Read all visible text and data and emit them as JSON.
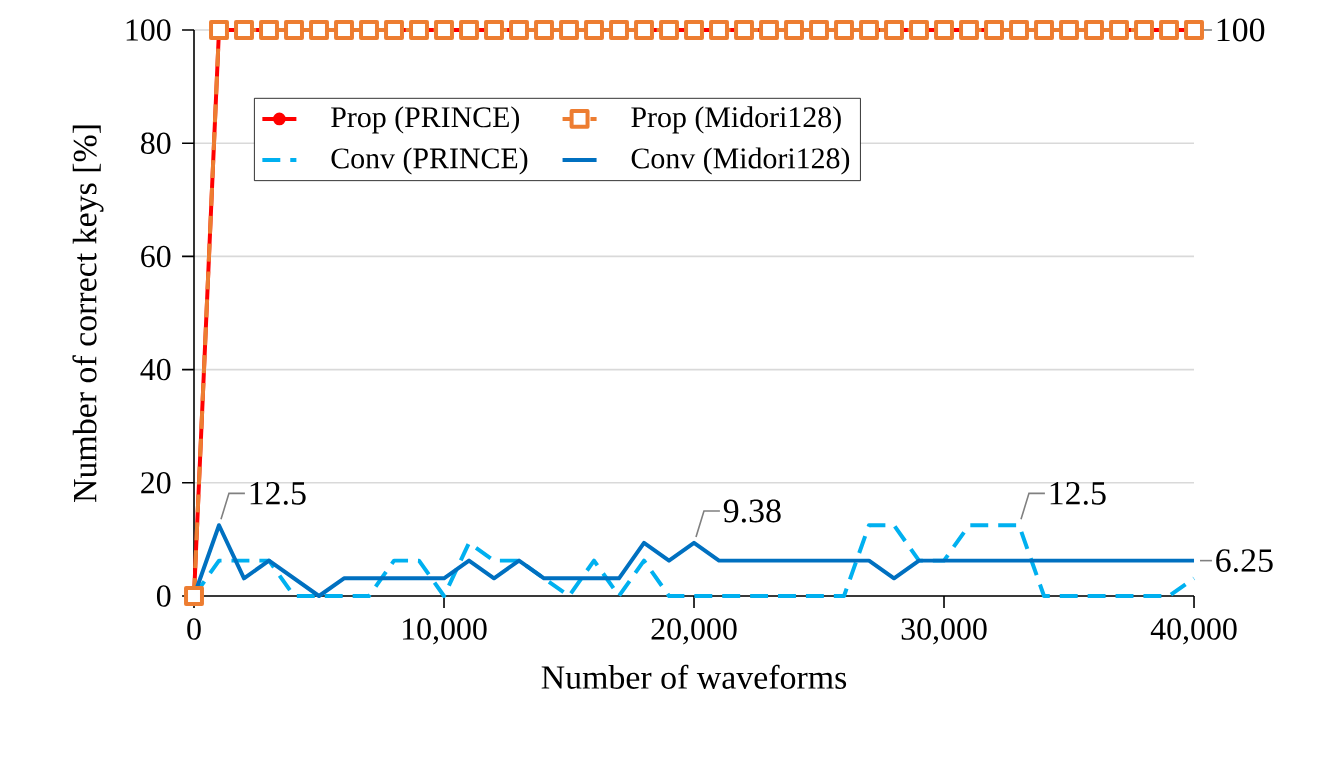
{
  "chart_data": {
    "type": "line",
    "xlabel": "Number of waveforms",
    "ylabel": "Number of correct keys [%]",
    "x": [
      0,
      1000,
      2000,
      3000,
      4000,
      5000,
      6000,
      7000,
      8000,
      9000,
      10000,
      11000,
      12000,
      13000,
      14000,
      15000,
      16000,
      17000,
      18000,
      19000,
      20000,
      21000,
      22000,
      23000,
      24000,
      25000,
      26000,
      27000,
      28000,
      29000,
      30000,
      31000,
      32000,
      33000,
      34000,
      35000,
      36000,
      37000,
      38000,
      39000,
      40000
    ],
    "xlim": [
      0,
      40000
    ],
    "ylim": [
      0,
      100
    ],
    "xticks": [
      0,
      {
        "value": 10000,
        "label": "10,000"
      },
      {
        "value": 20000,
        "label": "20,000"
      },
      {
        "value": 30000,
        "label": "30,000"
      },
      {
        "value": 40000,
        "label": "40,000"
      }
    ],
    "yticks": [
      0,
      20,
      40,
      60,
      80,
      100
    ],
    "grid": "y",
    "legend": "top",
    "series": [
      {
        "name": "Prop (PRINCE)",
        "color": "#ff0000",
        "line_style": "solid",
        "marker": "circle",
        "values": [
          0,
          100,
          100,
          100,
          100,
          100,
          100,
          100,
          100,
          100,
          100,
          100,
          100,
          100,
          100,
          100,
          100,
          100,
          100,
          100,
          100,
          100,
          100,
          100,
          100,
          100,
          100,
          100,
          100,
          100,
          100,
          100,
          100,
          100,
          100,
          100,
          100,
          100,
          100,
          100,
          100
        ]
      },
      {
        "name": "Prop (Midori128)",
        "color": "#ed7d31",
        "line_style": "dashed",
        "marker": "square",
        "values": [
          0,
          100,
          100,
          100,
          100,
          100,
          100,
          100,
          100,
          100,
          100,
          100,
          100,
          100,
          100,
          100,
          100,
          100,
          100,
          100,
          100,
          100,
          100,
          100,
          100,
          100,
          100,
          100,
          100,
          100,
          100,
          100,
          100,
          100,
          100,
          100,
          100,
          100,
          100,
          100,
          100
        ]
      },
      {
        "name": "Conv (PRINCE)",
        "color": "#00b0f0",
        "line_style": "dashed",
        "marker": "none",
        "values": [
          0,
          6.25,
          6.25,
          6.25,
          0,
          0,
          0,
          0,
          6.25,
          6.25,
          0,
          9.375,
          6.25,
          6.25,
          3.125,
          0,
          6.25,
          0,
          6.25,
          0,
          0,
          0,
          0,
          0,
          0,
          0,
          0,
          12.5,
          12.5,
          6.25,
          6.25,
          12.5,
          12.5,
          12.5,
          0,
          0,
          0,
          0,
          0,
          0,
          3.125
        ]
      },
      {
        "name": "Conv (Midori128)",
        "color": "#0070c0",
        "line_style": "solid",
        "marker": "none",
        "values": [
          0,
          12.5,
          3.125,
          6.25,
          3.125,
          0,
          3.125,
          3.125,
          3.125,
          3.125,
          3.125,
          6.25,
          3.125,
          6.25,
          3.125,
          3.125,
          3.125,
          3.125,
          9.375,
          6.25,
          9.38,
          6.25,
          6.25,
          6.25,
          6.25,
          6.25,
          6.25,
          6.25,
          3.125,
          6.25,
          6.25,
          6.25,
          6.25,
          6.25,
          6.25,
          6.25,
          6.25,
          6.25,
          6.25,
          6.25,
          6.25
        ]
      }
    ],
    "annotations": [
      {
        "text": "100",
        "x": 40000,
        "y": 100
      },
      {
        "text": "12.5",
        "x": 1000,
        "y": 12.5
      },
      {
        "text": "9.38",
        "x": 20000,
        "y": 9.38
      },
      {
        "text": "12.5",
        "x": 33000,
        "y": 12.5
      },
      {
        "text": "6.25",
        "x": 40000,
        "y": 6.25
      }
    ]
  }
}
